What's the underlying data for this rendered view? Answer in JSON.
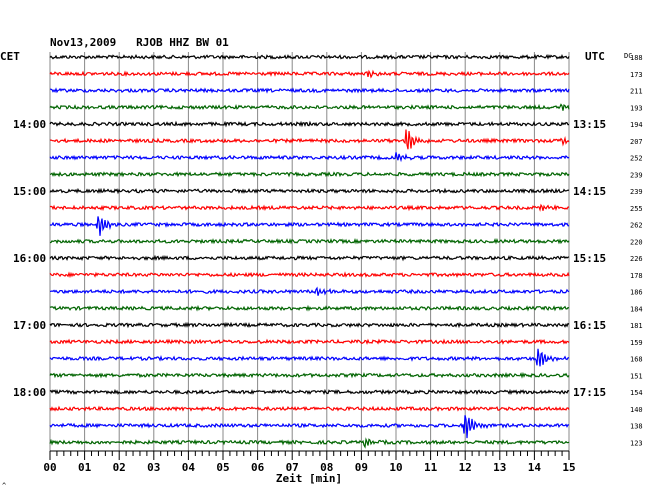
{
  "chart_data": {
    "type": "line",
    "title": "Nov13,2009   RJOB HHZ BW 01",
    "left_label": "CET",
    "right_label": "UTC",
    "dc_label": "DC",
    "xlabel": "Zeit [min]",
    "x_ticks": [
      "00",
      "01",
      "02",
      "03",
      "04",
      "05",
      "06",
      "07",
      "08",
      "09",
      "10",
      "11",
      "12",
      "13",
      "14",
      "15"
    ],
    "xlim": [
      0,
      15
    ],
    "grid": true,
    "minor_ticks_per_minute": 5,
    "left_hour_labels": [
      {
        "row": 4,
        "text": "14:00"
      },
      {
        "row": 8,
        "text": "15:00"
      },
      {
        "row": 12,
        "text": "16:00"
      },
      {
        "row": 16,
        "text": "17:00"
      },
      {
        "row": 20,
        "text": "18:00"
      }
    ],
    "right_hour_labels": [
      {
        "row": 4,
        "text": "13:15"
      },
      {
        "row": 8,
        "text": "14:15"
      },
      {
        "row": 12,
        "text": "15:15"
      },
      {
        "row": 16,
        "text": "16:15"
      },
      {
        "row": 20,
        "text": "17:15"
      }
    ],
    "dc_offsets": [
      188,
      173,
      211,
      193,
      194,
      207,
      252,
      239,
      239,
      255,
      262,
      220,
      226,
      178,
      186,
      184,
      181,
      159,
      168,
      151,
      154,
      140,
      138,
      123
    ],
    "series_colors": [
      "#000000",
      "#ff0000",
      "#0000ff",
      "#006400"
    ],
    "events": [
      {
        "row": 1,
        "minute": 9.2,
        "amplitude": 0.25
      },
      {
        "row": 3,
        "minute": 14.8,
        "amplitude": 0.2
      },
      {
        "row": 5,
        "minute": 10.3,
        "amplitude": 0.9
      },
      {
        "row": 5,
        "minute": 14.8,
        "amplitude": 0.2
      },
      {
        "row": 6,
        "minute": 10.0,
        "amplitude": 0.3
      },
      {
        "row": 9,
        "minute": 14.2,
        "amplitude": 0.15
      },
      {
        "row": 10,
        "minute": 1.4,
        "amplitude": 0.85
      },
      {
        "row": 14,
        "minute": 7.7,
        "amplitude": 0.3
      },
      {
        "row": 18,
        "minute": 14.1,
        "amplitude": 0.8
      },
      {
        "row": 22,
        "minute": 12.0,
        "amplitude": 1.0
      },
      {
        "row": 23,
        "minute": 9.1,
        "amplitude": 0.3
      }
    ]
  },
  "corner_mark": "^"
}
